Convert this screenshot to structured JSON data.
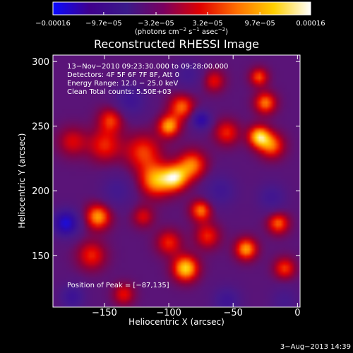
{
  "chart_data": {
    "type": "heatmap",
    "title": "Reconstructed RHESSI Image",
    "xlabel": "Heliocentric X (arcsec)",
    "ylabel": "Heliocentric Y (arcsec)",
    "xlim": [
      -190,
      2
    ],
    "ylim": [
      110,
      305
    ],
    "x_ticks": [
      {
        "value": -150,
        "label": "−150"
      },
      {
        "value": -100,
        "label": "−100"
      },
      {
        "value": -50,
        "label": "−50"
      },
      {
        "value": 0,
        "label": "0"
      }
    ],
    "y_ticks": [
      {
        "value": 150,
        "label": "150"
      },
      {
        "value": 200,
        "label": "200"
      },
      {
        "value": 250,
        "label": "250"
      },
      {
        "value": 300,
        "label": "300"
      }
    ],
    "colorbar": {
      "range": [
        -0.00016,
        0.00016
      ],
      "ticks": [
        {
          "value": -0.00016,
          "label": "−0.00016"
        },
        {
          "value": -9.7e-05,
          "label": "−9.7e−05"
        },
        {
          "value": -3.2e-05,
          "label": "−3.2e−05"
        },
        {
          "value": 3.2e-05,
          "label": "3.2e−05"
        },
        {
          "value": 9.7e-05,
          "label": "9.7e−05"
        },
        {
          "value": 0.00016,
          "label": "0.00016"
        }
      ],
      "unit_label": {
        "open": "(photons cm",
        "exp1": "−2",
        "mid": " s",
        "exp2": "−1",
        "mid2": " asec",
        "exp3": "−2",
        "close": ")"
      },
      "colormap": [
        "#0a0aff",
        "#40008c",
        "#3a1a8a",
        "#7a0060",
        "#e00000",
        "#ff7000",
        "#ffd000",
        "#ffffff"
      ]
    },
    "annotations": {
      "time_range": "13−Nov−2010 09:23:30.000 to 09:28:00.000",
      "detectors": "Detectors: 4F 5F 6F 7F 8F, Att 0",
      "energy": "Energy Range: 12.0 − 25.0 keV",
      "clean": "Clean     Total counts: 5.50E+03",
      "peak": "Position of Peak = [−87,135]"
    },
    "peak": {
      "x": -87,
      "y": 135
    },
    "sources": [
      {
        "x": -87,
        "y": 140,
        "amp": 1.0,
        "s": 7
      },
      {
        "x": -110,
        "y": 208,
        "amp": 0.85,
        "s": 9
      },
      {
        "x": -95,
        "y": 210,
        "amp": 0.9,
        "s": 7
      },
      {
        "x": -82,
        "y": 220,
        "amp": 0.75,
        "s": 8
      },
      {
        "x": -120,
        "y": 230,
        "amp": 0.6,
        "s": 10
      },
      {
        "x": -100,
        "y": 250,
        "amp": 0.85,
        "s": 6
      },
      {
        "x": -90,
        "y": 265,
        "amp": 0.7,
        "s": 7
      },
      {
        "x": -150,
        "y": 235,
        "amp": 0.55,
        "s": 9
      },
      {
        "x": -175,
        "y": 238,
        "amp": 0.45,
        "s": 8
      },
      {
        "x": -145,
        "y": 255,
        "amp": 0.6,
        "s": 7
      },
      {
        "x": -30,
        "y": 242,
        "amp": 0.95,
        "s": 6
      },
      {
        "x": -20,
        "y": 235,
        "amp": 0.7,
        "s": 7
      },
      {
        "x": -25,
        "y": 268,
        "amp": 0.75,
        "s": 6
      },
      {
        "x": -30,
        "y": 288,
        "amp": 0.65,
        "s": 5
      },
      {
        "x": -55,
        "y": 245,
        "amp": 0.55,
        "s": 7
      },
      {
        "x": -65,
        "y": 285,
        "amp": 0.5,
        "s": 6
      },
      {
        "x": -155,
        "y": 180,
        "amp": 0.85,
        "s": 7
      },
      {
        "x": -160,
        "y": 150,
        "amp": 0.55,
        "s": 8
      },
      {
        "x": -75,
        "y": 185,
        "amp": 0.75,
        "s": 6
      },
      {
        "x": -70,
        "y": 165,
        "amp": 0.55,
        "s": 7
      },
      {
        "x": -100,
        "y": 160,
        "amp": 0.55,
        "s": 7
      },
      {
        "x": -40,
        "y": 155,
        "amp": 0.85,
        "s": 6
      },
      {
        "x": -15,
        "y": 175,
        "amp": 0.7,
        "s": 6
      },
      {
        "x": -10,
        "y": 140,
        "amp": 0.6,
        "s": 6
      },
      {
        "x": -135,
        "y": 120,
        "amp": 0.5,
        "s": 6
      },
      {
        "x": -120,
        "y": 180,
        "amp": 0.45,
        "s": 6
      },
      {
        "x": -180,
        "y": 175,
        "amp": -1.0,
        "s": 7
      },
      {
        "x": -130,
        "y": 270,
        "amp": -0.45,
        "s": 9
      },
      {
        "x": -75,
        "y": 255,
        "amp": -0.8,
        "s": 5
      },
      {
        "x": -140,
        "y": 200,
        "amp": -0.35,
        "s": 9
      },
      {
        "x": -60,
        "y": 200,
        "amp": -0.4,
        "s": 9
      },
      {
        "x": -175,
        "y": 118,
        "amp": -0.5,
        "s": 7
      },
      {
        "x": -55,
        "y": 115,
        "amp": -0.45,
        "s": 8
      },
      {
        "x": -20,
        "y": 195,
        "amp": -0.4,
        "s": 8
      },
      {
        "x": -85,
        "y": 290,
        "amp": -0.35,
        "s": 8
      },
      {
        "x": -10,
        "y": 115,
        "amp": -0.3,
        "s": 8
      }
    ]
  },
  "footer": {
    "date_stamp": "3−Aug−2013 14:39"
  }
}
